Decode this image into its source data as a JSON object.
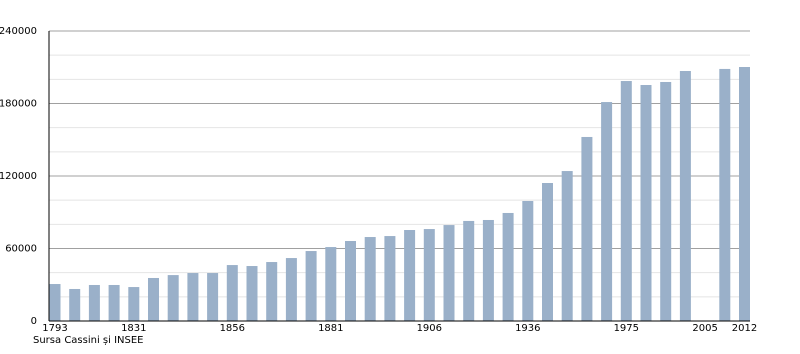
{
  "chart_data": {
    "type": "bar",
    "categories": [
      "1793",
      null,
      null,
      null,
      "1831",
      null,
      null,
      null,
      null,
      "1856",
      null,
      null,
      null,
      null,
      "1881",
      null,
      null,
      null,
      null,
      "1906",
      null,
      null,
      null,
      null,
      "1936",
      null,
      null,
      null,
      null,
      "1975",
      null,
      null,
      null,
      "2005",
      null,
      "2012"
    ],
    "values": [
      30600,
      26500,
      29800,
      29800,
      28100,
      35600,
      38000,
      39700,
      39700,
      46300,
      45500,
      48800,
      52100,
      57900,
      61200,
      66200,
      69500,
      70300,
      75300,
      76100,
      79400,
      82800,
      83600,
      89400,
      99300,
      114200,
      124100,
      152300,
      181200,
      198600,
      195300,
      197800,
      206900,
      null,
      208600,
      210200
    ],
    "color": "#9ab0c9",
    "ylim": [
      0,
      240000
    ],
    "yticks": [
      0,
      60000,
      120000,
      180000,
      240000
    ],
    "minor_yticks": [
      20000,
      40000,
      80000,
      100000,
      140000,
      160000,
      200000,
      220000
    ],
    "grid": true,
    "source": "Sursa Cassini și INSEE"
  }
}
